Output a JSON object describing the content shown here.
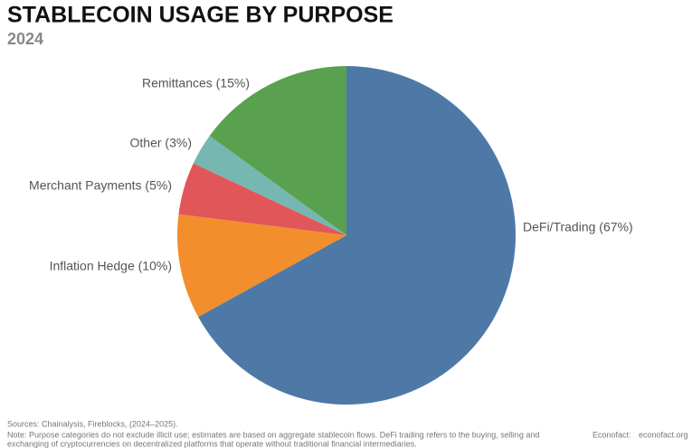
{
  "chart_data": {
    "type": "pie",
    "title": "STABLECOIN USAGE BY PURPOSE",
    "subtitle": "2024",
    "categories": [
      "DeFi/Trading (67%)",
      "Inflation Hedge (10%)",
      "Merchant Payments (5%)",
      "Other (3%)",
      "Remittances (15%)"
    ],
    "values": [
      67,
      10,
      5,
      3,
      15
    ],
    "colors": [
      "#4e79a7",
      "#f28e2b",
      "#e15759",
      "#76b7b2",
      "#59a14f"
    ],
    "sources": "Sources: Chainalysis, Fireblocks, (2024–2025).",
    "note": [
      "Note: Purpose categories do not exclude illicit use; estimates are based on aggregate stablecoin flows. DeFi trading refers to the buying, selling and",
      "exchanging of cryptocurrencies on decentralized platforms that operate without traditional financial intermediaries."
    ],
    "publisher": "Econofact:",
    "website": "econofact.org"
  }
}
